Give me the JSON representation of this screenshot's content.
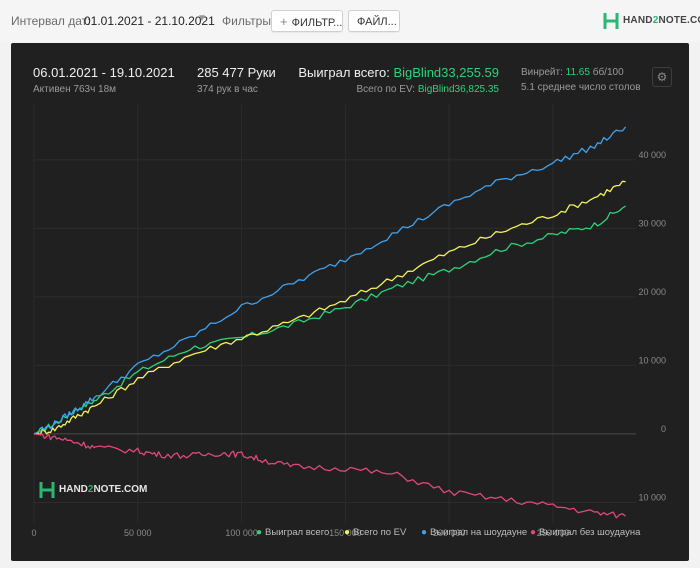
{
  "topbar": {
    "date_interval_label": "Интервал дат:",
    "date_interval_value": "01.01.2021 - 21.10.2021",
    "filters_label": "Фильтры:",
    "filter_button_label": "ФИЛЬТР...",
    "file_button_label": "ФАЙЛ..."
  },
  "logo": {
    "brand_prefix": "HAND",
    "brand_number": "2",
    "brand_suffix": "NOTE.COM"
  },
  "summary": {
    "date_range": "06.01.2021 - 19.10.2021",
    "active_time": "Активен 763ч 18м",
    "hands": "285 477 Руки",
    "hands_per_hour": "374 рук в час",
    "won_total_label": "Выиграл всего:",
    "won_total_value": "BigBlind33,255.59",
    "ev_total_label": "Всего по EV:",
    "ev_total_value": "BigBlind36,825.35",
    "winrate_label": "Винрейт:",
    "winrate_value": "11.65",
    "winrate_unit": "бб/100",
    "avg_tables": "5.1 среднее число столов"
  },
  "watermark": {
    "brand_prefix": "HAND",
    "brand_number": "2",
    "brand_suffix": "NOTE.COM"
  },
  "colors": {
    "won_total": "#2bd37a",
    "ev_total": "#f2f25a",
    "showdown": "#3fa2f0",
    "non_showdown": "#e0477a"
  },
  "chart_data": {
    "type": "line",
    "xlim": [
      0,
      290000
    ],
    "ylim": [
      -13000,
      48000
    ],
    "x_ticks": [
      0,
      50000,
      100000,
      150000,
      200000,
      250000
    ],
    "x_tick_labels": [
      "0",
      "50 000",
      "100 000",
      "150 000",
      "200 000",
      "250 000"
    ],
    "y_ticks": [
      40000,
      30000,
      20000,
      10000,
      0,
      -10000
    ],
    "y_tick_labels": [
      "40 000",
      "30 000",
      "20 000",
      "10 000",
      "0",
      "10 000"
    ],
    "grid": true,
    "legend_position": "bottom-right",
    "series": [
      {
        "name": "Выиграл всего",
        "key": "won_total",
        "x": [
          0,
          10000,
          20000,
          30000,
          50000,
          75000,
          100000,
          125000,
          150000,
          175000,
          200000,
          225000,
          250000,
          270000,
          285000
        ],
        "y": [
          0,
          1500,
          3500,
          5000,
          9000,
          12500,
          14000,
          16000,
          18500,
          21500,
          24000,
          27000,
          29000,
          30500,
          33250
        ]
      },
      {
        "name": "Всего по EV",
        "key": "ev_total",
        "x": [
          0,
          10000,
          20000,
          30000,
          50000,
          75000,
          100000,
          125000,
          150000,
          175000,
          200000,
          225000,
          250000,
          270000,
          285000
        ],
        "y": [
          0,
          700,
          2500,
          4200,
          8000,
          11500,
          14000,
          16500,
          19500,
          23000,
          26500,
          29500,
          32000,
          34500,
          36800
        ]
      },
      {
        "name": "Выиграл на шоудауне",
        "key": "showdown",
        "x": [
          0,
          10000,
          20000,
          30000,
          50000,
          75000,
          100000,
          125000,
          150000,
          175000,
          200000,
          225000,
          250000,
          270000,
          285000
        ],
        "y": [
          0,
          1500,
          3500,
          5500,
          10000,
          14000,
          18500,
          22000,
          25500,
          29500,
          33500,
          37000,
          39500,
          42000,
          44800
        ]
      },
      {
        "name": "Выиграл без шоудауна",
        "key": "non_showdown",
        "x": [
          0,
          10000,
          20000,
          30000,
          50000,
          60000,
          75000,
          90000,
          100000,
          110000,
          125000,
          150000,
          175000,
          200000,
          225000,
          250000,
          270000,
          285000
        ],
        "y": [
          0,
          -500,
          -1200,
          -2000,
          -2500,
          -3000,
          -3200,
          -2800,
          -3000,
          -3800,
          -4800,
          -5000,
          -6000,
          -8500,
          -9500,
          -10500,
          -11500,
          -12000
        ]
      }
    ]
  }
}
